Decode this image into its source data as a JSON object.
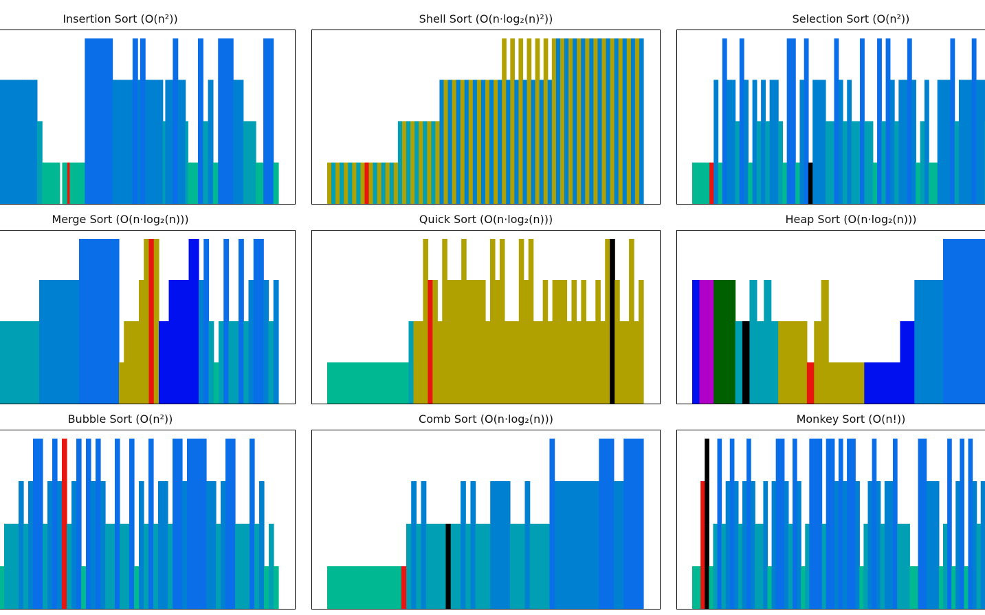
{
  "chart_data": [
    {
      "type": "bar",
      "title": "Insertion Sort (O(n²))",
      "title_parts": [
        "Insertion Sort (",
        "O",
        "(",
        "n",
        "2",
        "))"
      ],
      "ylim": [
        0,
        4
      ],
      "runs": [
        [
          0,
          0,
          1
        ],
        [
          3,
          18,
          3
        ],
        [
          18,
          20,
          2
        ],
        [
          20,
          27,
          1
        ],
        [
          27,
          28,
          0
        ],
        [
          28,
          37,
          1
        ],
        [
          37,
          48,
          4
        ],
        [
          48,
          56,
          3
        ],
        [
          56,
          58,
          4
        ],
        [
          58,
          59,
          3
        ],
        [
          59,
          61,
          4
        ],
        [
          61,
          68,
          3
        ],
        [
          68,
          69,
          2
        ],
        [
          69,
          72,
          3
        ],
        [
          72,
          74,
          4
        ],
        [
          74,
          77,
          3
        ],
        [
          77,
          78,
          2
        ],
        [
          78,
          82,
          1
        ],
        [
          82,
          84,
          4
        ],
        [
          84,
          86,
          2
        ],
        [
          86,
          88,
          3
        ],
        [
          88,
          90,
          1
        ],
        [
          90,
          96,
          4
        ],
        [
          96,
          100,
          3
        ],
        [
          100,
          105,
          2
        ],
        [
          105,
          108,
          1
        ],
        [
          108,
          112,
          4
        ],
        [
          112,
          114,
          1
        ]
      ],
      "highlights": [
        {
          "index": 27,
          "color": "#e8160f"
        }
      ]
    },
    {
      "type": "bar",
      "title": "Shell Sort (O(n·log₂(n)²))",
      "ylim": [
        0,
        4
      ],
      "runs_pattern": "alternating",
      "highlights": [
        {
          "index": 8,
          "color": "#e8160f"
        }
      ]
    },
    {
      "type": "bar",
      "title": "Selection Sort (O(n²))",
      "ylim": [
        0,
        4
      ],
      "highlights": [
        {
          "index": 4,
          "color": "#e8160f"
        },
        {
          "index": 23,
          "color": "#000000"
        }
      ]
    },
    {
      "type": "bar",
      "title": "Merge Sort (O(n·log₂(n)))",
      "ylim": [
        0,
        4
      ],
      "highlights": [
        {
          "index": 50,
          "color": "#e8160f"
        }
      ]
    },
    {
      "type": "bar",
      "title": "Quick Sort (O(n·log₂(n)))",
      "ylim": [
        0,
        4
      ],
      "highlights": [
        {
          "index": 20,
          "color": "#e8160f"
        },
        {
          "index": 52,
          "color": "#000000"
        }
      ]
    },
    {
      "type": "bar",
      "title": "Heap Sort (O(n·log₂(n)))",
      "ylim": [
        0,
        4
      ],
      "highlights": [
        {
          "index": 9,
          "color": "#000000"
        },
        {
          "index": 21,
          "color": "#e8160f"
        }
      ]
    },
    {
      "type": "bar",
      "title": "Bubble Sort (O(n²))",
      "ylim": [
        0,
        4
      ],
      "highlights": [
        {
          "index": 26,
          "color": "#e8160f"
        }
      ]
    },
    {
      "type": "bar",
      "title": "Comb Sort (O(n·log₂(n)))",
      "ylim": [
        0,
        4
      ],
      "highlights": [
        {
          "index": 14,
          "color": "#e8160f"
        },
        {
          "index": 22,
          "color": "#000000"
        }
      ]
    },
    {
      "type": "bar",
      "title": "Monkey Sort (O(n!))",
      "ylim": [
        0,
        4
      ],
      "highlights": [
        {
          "index": 3,
          "color": "#e8160f"
        },
        {
          "index": 4,
          "color": "#000000"
        }
      ]
    }
  ],
  "colors": {
    "level1": "#00b891",
    "level2": "#009fb3",
    "level3": "#0080d0",
    "level4": "#0a6ee8",
    "highlight": "#e8160f",
    "pivot": "#000000",
    "sorted": "#b0a100",
    "merge_blue": "#0010ee",
    "heap_magenta": "#b000c8",
    "heap_green": "#006000"
  },
  "titles": {
    "insertion": {
      "name": "Insertion Sort",
      "complexity": "O(n²)"
    },
    "shell": {
      "name": "Shell Sort",
      "complexity": "O(n·log₂(n)²)"
    },
    "selection": {
      "name": "Selection Sort",
      "complexity": "O(n²)"
    },
    "merge": {
      "name": "Merge Sort",
      "complexity": "O(n·log₂(n))"
    },
    "quick": {
      "name": "Quick Sort",
      "complexity": "O(n·log₂(n))"
    },
    "heap": {
      "name": "Heap Sort",
      "complexity": "O(n·log₂(n))"
    },
    "bubble": {
      "name": "Bubble Sort",
      "complexity": "O(n²)"
    },
    "comb": {
      "name": "Comb Sort",
      "complexity": "O(n·log₂(n))"
    },
    "monkey": {
      "name": "Monkey Sort",
      "complexity": "O(n!)"
    }
  }
}
